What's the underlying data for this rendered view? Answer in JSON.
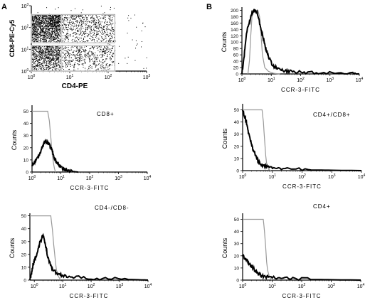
{
  "figure": {
    "panel_a_label": "A",
    "panel_b_label": "B"
  },
  "chart_data": [
    {
      "id": "dot",
      "type": "scatter",
      "xlabel": "CD4-PE",
      "ylabel": "CD8-PE-Cy5",
      "xscale": "log",
      "yscale": "log",
      "xlim": [
        1,
        1000
      ],
      "ylim": [
        1,
        1000
      ],
      "x_ticks": [
        "10^0",
        "10^1",
        "10^2",
        "10^3"
      ],
      "y_ticks": [
        "10^0",
        "10^1",
        "10^2",
        "10^3"
      ],
      "populations": [
        {
          "region": "CD8+",
          "x_range": [
            1,
            6
          ],
          "y_range": [
            20,
            400
          ]
        },
        {
          "region": "CD4+/CD8+",
          "x_range": [
            6,
            150
          ],
          "y_range": [
            20,
            400
          ]
        },
        {
          "region": "CD4-/CD8-",
          "x_range": [
            1,
            6
          ],
          "y_range": [
            1,
            15
          ]
        },
        {
          "region": "CD4+",
          "x_range": [
            6,
            150
          ],
          "y_range": [
            1,
            15
          ]
        }
      ],
      "gates": [
        {
          "x_range": [
            1,
            6
          ],
          "y_range": [
            20,
            400
          ]
        },
        {
          "x_range": [
            6,
            150
          ],
          "y_range": [
            20,
            400
          ]
        },
        {
          "x_range": [
            1,
            6
          ],
          "y_range": [
            1,
            15
          ]
        },
        {
          "x_range": [
            6,
            150
          ],
          "y_range": [
            1,
            15
          ]
        }
      ]
    },
    {
      "id": "h_all",
      "type": "line",
      "title": "",
      "xlabel": "CCR-3-FITC",
      "ylabel": "Counts",
      "xscale": "log",
      "xlim": [
        1,
        10000
      ],
      "ylim": [
        0,
        210
      ],
      "x_ticks": [
        "10^0",
        "10^1",
        "10^2",
        "10^3",
        "10^4"
      ],
      "y_ticks": [
        0,
        20,
        40,
        60,
        80,
        100,
        120,
        140,
        160,
        180,
        200
      ],
      "series": [
        {
          "role": "control",
          "color": "#999999",
          "points": [
            [
              1.6,
              0
            ],
            [
              1.8,
              40
            ],
            [
              2.0,
              120
            ],
            [
              2.2,
              180
            ],
            [
              2.5,
              200
            ],
            [
              3.5,
              200
            ],
            [
              4.0,
              180
            ],
            [
              4.5,
              120
            ],
            [
              5.0,
              60
            ],
            [
              6.0,
              20
            ],
            [
              8.0,
              8
            ],
            [
              12,
              2
            ],
            [
              20,
              0
            ]
          ]
        },
        {
          "role": "stained",
          "color": "#000000",
          "points": [
            [
              1.0,
              0
            ],
            [
              1.2,
              60
            ],
            [
              1.4,
              120
            ],
            [
              1.6,
              150
            ],
            [
              1.9,
              170
            ],
            [
              2.2,
              190
            ],
            [
              2.6,
              200
            ],
            [
              3.2,
              195
            ],
            [
              3.8,
              170
            ],
            [
              4.5,
              140
            ],
            [
              5.5,
              110
            ],
            [
              6.5,
              80
            ],
            [
              8.0,
              55
            ],
            [
              10,
              35
            ],
            [
              13,
              22
            ],
            [
              17,
              16
            ],
            [
              25,
              10
            ],
            [
              40,
              8
            ],
            [
              70,
              6
            ],
            [
              150,
              5
            ],
            [
              400,
              4
            ],
            [
              1500,
              3
            ],
            [
              6000,
              2
            ],
            [
              10000,
              0
            ]
          ]
        }
      ]
    },
    {
      "id": "h_cd8",
      "type": "line",
      "title": "CD8+",
      "xlabel": "CCR-3-FITC",
      "ylabel": "Counts",
      "xscale": "log",
      "xlim": [
        1,
        10000
      ],
      "ylim": [
        0,
        55
      ],
      "x_ticks": [
        "10^0",
        "10^1",
        "10^2",
        "10^3",
        "10^4"
      ],
      "y_ticks": [
        0,
        10,
        20,
        30,
        40,
        50
      ],
      "series": [
        {
          "role": "control",
          "color": "#999999",
          "points": [
            [
              1.0,
              50
            ],
            [
              3.5,
              50
            ],
            [
              4.0,
              42
            ],
            [
              4.5,
              28
            ],
            [
              5.0,
              15
            ],
            [
              5.5,
              8
            ],
            [
              6.0,
              3
            ],
            [
              6.5,
              0
            ]
          ]
        },
        {
          "role": "stained",
          "color": "#000000",
          "points": [
            [
              1.0,
              5
            ],
            [
              1.3,
              9
            ],
            [
              1.6,
              12
            ],
            [
              1.9,
              16
            ],
            [
              2.2,
              20
            ],
            [
              2.6,
              24
            ],
            [
              3.0,
              25
            ],
            [
              3.5,
              24
            ],
            [
              4.0,
              23
            ],
            [
              4.5,
              20
            ],
            [
              5.0,
              18
            ],
            [
              5.5,
              14
            ],
            [
              6.2,
              10
            ],
            [
              7.0,
              9
            ],
            [
              8.0,
              7
            ],
            [
              9.0,
              5
            ],
            [
              11,
              3
            ],
            [
              14,
              2
            ],
            [
              18,
              1
            ],
            [
              25,
              0.5
            ],
            [
              40,
              0
            ]
          ]
        }
      ]
    },
    {
      "id": "h_cd4cd8",
      "type": "line",
      "title": "CD4+/CD8+",
      "xlabel": "CCR-3-FITC",
      "ylabel": "Counts",
      "xscale": "log",
      "xlim": [
        1,
        10000
      ],
      "ylim": [
        0,
        55
      ],
      "x_ticks": [
        "10^0",
        "10^1",
        "10^2",
        "10^3",
        "10^4"
      ],
      "y_ticks": [
        0,
        10,
        20,
        30,
        40,
        50
      ],
      "series": [
        {
          "role": "control",
          "color": "#999999",
          "points": [
            [
              1.0,
              50
            ],
            [
              4.5,
              50
            ],
            [
              5.0,
              40
            ],
            [
              5.5,
              25
            ],
            [
              6.0,
              12
            ],
            [
              6.5,
              5
            ],
            [
              7.5,
              1
            ],
            [
              9,
              0
            ]
          ]
        },
        {
          "role": "stained",
          "color": "#000000",
          "points": [
            [
              1.0,
              50
            ],
            [
              1.2,
              44
            ],
            [
              1.4,
              38
            ],
            [
              1.6,
              30
            ],
            [
              1.9,
              24
            ],
            [
              2.2,
              18
            ],
            [
              2.6,
              14
            ],
            [
              3.0,
              10
            ],
            [
              3.5,
              7
            ],
            [
              4.0,
              5
            ],
            [
              5.0,
              4
            ],
            [
              7.0,
              3
            ],
            [
              10,
              2.5
            ],
            [
              20,
              2
            ],
            [
              50,
              1
            ],
            [
              200,
              0.5
            ],
            [
              1000,
              0.3
            ],
            [
              10000,
              0
            ]
          ]
        }
      ]
    },
    {
      "id": "h_dn",
      "type": "line",
      "title": "CD4-/CD8-",
      "xlabel": "CCR-3-FITC",
      "ylabel": "Counts",
      "xscale": "log",
      "xlim": [
        0.7,
        10000
      ],
      "ylim": [
        0,
        52
      ],
      "x_ticks": [
        "10^0",
        "10^1",
        "10^2",
        "10^3",
        "10^4"
      ],
      "y_ticks": [
        0,
        10,
        20,
        30,
        40,
        50
      ],
      "series": [
        {
          "role": "control",
          "color": "#999999",
          "points": [
            [
              0.7,
              50
            ],
            [
              3.8,
              50
            ],
            [
              4.3,
              40
            ],
            [
              4.8,
              28
            ],
            [
              5.5,
              15
            ],
            [
              6.0,
              8
            ],
            [
              7.0,
              3
            ],
            [
              8.5,
              0
            ]
          ]
        },
        {
          "role": "stained",
          "color": "#000000",
          "points": [
            [
              0.7,
              0
            ],
            [
              0.8,
              5
            ],
            [
              0.9,
              12
            ],
            [
              1.0,
              15
            ],
            [
              1.2,
              20
            ],
            [
              1.4,
              25
            ],
            [
              1.6,
              30
            ],
            [
              1.8,
              32
            ],
            [
              2.0,
              35
            ],
            [
              2.3,
              30
            ],
            [
              2.6,
              25
            ],
            [
              3.0,
              18
            ],
            [
              3.5,
              14
            ],
            [
              4.0,
              10
            ],
            [
              5.0,
              7
            ],
            [
              6.5,
              5
            ],
            [
              9,
              4
            ],
            [
              15,
              3
            ],
            [
              30,
              2
            ],
            [
              100,
              1.5
            ],
            [
              400,
              1
            ],
            [
              2000,
              0.5
            ],
            [
              10000,
              0
            ]
          ]
        }
      ]
    },
    {
      "id": "h_cd4",
      "type": "line",
      "title": "CD4+",
      "xlabel": "CCR-3-FITC",
      "ylabel": "Counts",
      "xscale": "log",
      "xlim": [
        1,
        10000
      ],
      "ylim": [
        0,
        55
      ],
      "x_ticks": [
        "10^0",
        "10^1",
        "10^2",
        "10^3",
        "10^4"
      ],
      "y_ticks": [
        0,
        10,
        20,
        30,
        40,
        50
      ],
      "series": [
        {
          "role": "control",
          "color": "#999999",
          "points": [
            [
              1.0,
              50
            ],
            [
              5.0,
              50
            ],
            [
              5.5,
              40
            ],
            [
              6.0,
              28
            ],
            [
              6.5,
              15
            ],
            [
              7.0,
              8
            ],
            [
              8.0,
              3
            ],
            [
              9.5,
              0
            ]
          ]
        },
        {
          "role": "stained",
          "color": "#000000",
          "points": [
            [
              1.0,
              20
            ],
            [
              1.2,
              18
            ],
            [
              1.4,
              16
            ],
            [
              1.6,
              14
            ],
            [
              1.9,
              12
            ],
            [
              2.2,
              10
            ],
            [
              2.6,
              8
            ],
            [
              3.0,
              6
            ],
            [
              3.5,
              5
            ],
            [
              4.0,
              4
            ],
            [
              5.0,
              3
            ],
            [
              7.0,
              2.5
            ],
            [
              10,
              2
            ],
            [
              20,
              1.5
            ],
            [
              50,
              1
            ],
            [
              200,
              0.5
            ],
            [
              1000,
              0.3
            ],
            [
              10000,
              0
            ]
          ]
        }
      ]
    }
  ]
}
